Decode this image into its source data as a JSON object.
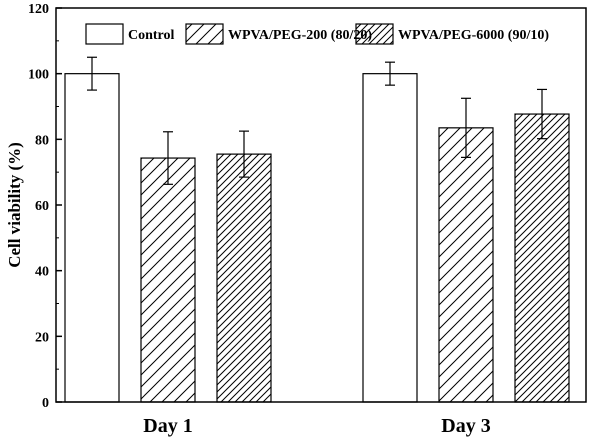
{
  "chart_data": {
    "type": "bar",
    "title": "",
    "xlabel": "",
    "ylabel": "Cell viability (%)",
    "ylim": [
      0,
      120
    ],
    "yticks": [
      0,
      20,
      40,
      60,
      80,
      100,
      120
    ],
    "categories": [
      "Day 1",
      "Day 3"
    ],
    "series": [
      {
        "name": "Control",
        "values": [
          100,
          100
        ],
        "errors": [
          5,
          3.5
        ],
        "pattern": "none"
      },
      {
        "name": "WPVA/PEG-200 (80/20)",
        "values": [
          74.3,
          83.5
        ],
        "errors": [
          8,
          9
        ],
        "pattern": "hatch-wide"
      },
      {
        "name": "WPVA/PEG-6000 (90/10)",
        "values": [
          75.5,
          87.7
        ],
        "errors": [
          7,
          7.5
        ],
        "pattern": "hatch-dense"
      }
    ],
    "legend_position": "top",
    "grid": false
  }
}
